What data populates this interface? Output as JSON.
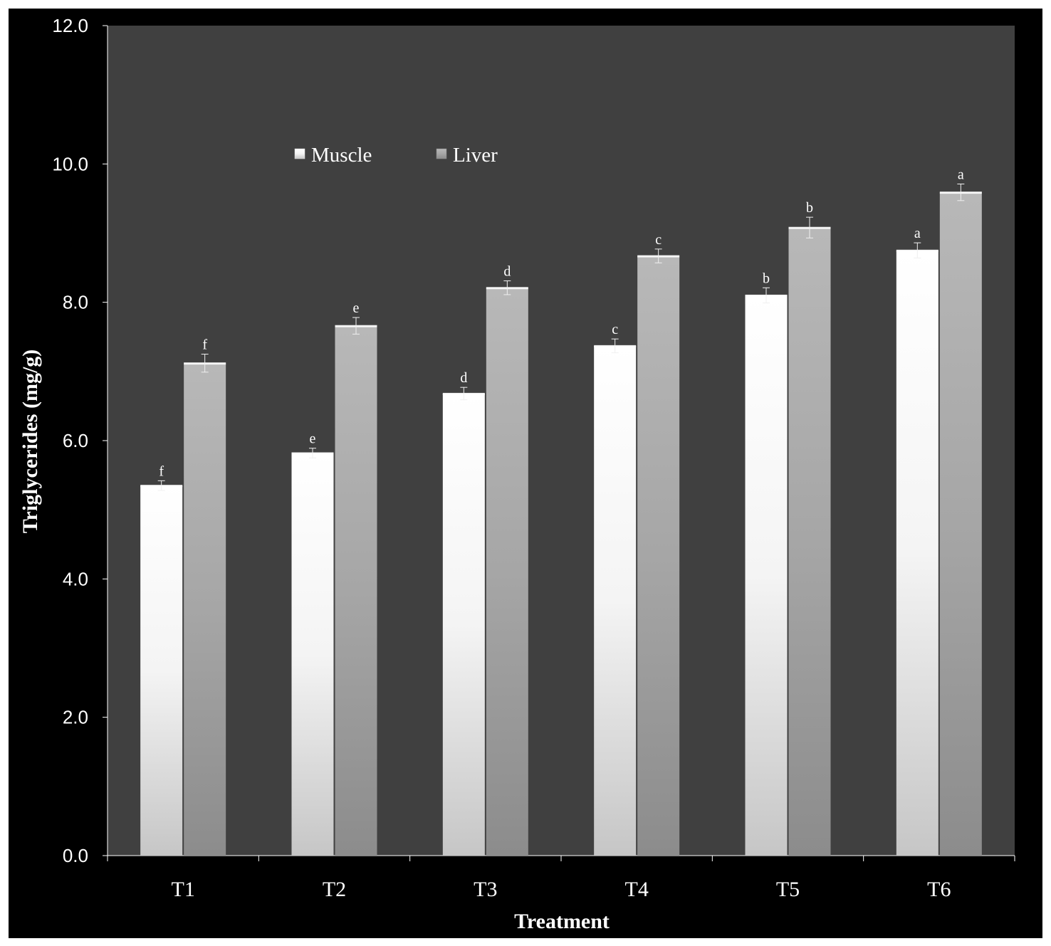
{
  "chart_data": {
    "type": "bar",
    "title": "",
    "xlabel": "Treatment",
    "ylabel": "Triglycerides (mg/g)",
    "categories": [
      "T1",
      "T2",
      "T3",
      "T4",
      "T5",
      "T6"
    ],
    "ylim": [
      0,
      12
    ],
    "yticks": [
      "0.0",
      "2.0",
      "4.0",
      "6.0",
      "8.0",
      "10.0",
      "12.0"
    ],
    "grid": false,
    "legend_position": "top-left inside plot",
    "colors": {
      "figure_background": "#000000",
      "plot_background": "#404040",
      "muscle": "#ffffff",
      "liver": "#a8a8a8",
      "text": "#ffffff"
    },
    "series": [
      {
        "name": "Muscle",
        "values": [
          5.35,
          5.82,
          6.68,
          7.37,
          8.1,
          8.75
        ],
        "errors": [
          0.07,
          0.07,
          0.09,
          0.1,
          0.11,
          0.11
        ],
        "significance": [
          "f",
          "e",
          "d",
          "c",
          "b",
          "a"
        ]
      },
      {
        "name": "Liver",
        "values": [
          7.12,
          7.66,
          8.21,
          8.67,
          9.08,
          9.59
        ],
        "errors": [
          0.13,
          0.12,
          0.1,
          0.1,
          0.15,
          0.12
        ],
        "significance": [
          "f",
          "e",
          "d",
          "c",
          "b",
          "a"
        ]
      }
    ]
  }
}
